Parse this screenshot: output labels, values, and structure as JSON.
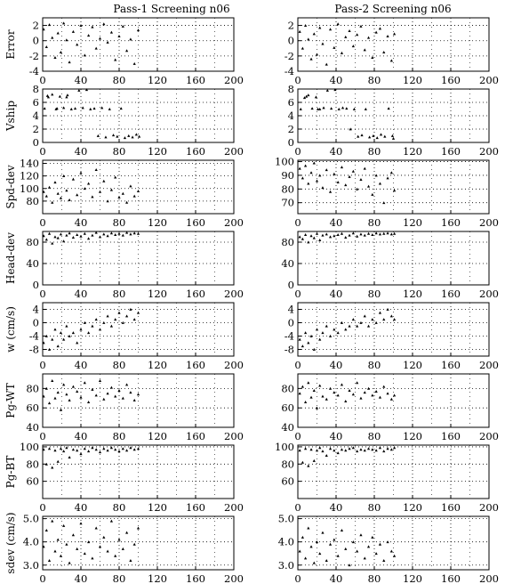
{
  "titles": [
    "Pass-1 Screening n06",
    "Pass-2 Screening n06"
  ],
  "chart_data": [
    {
      "type": "scatter",
      "id": "p1-error",
      "ylabel": "Error",
      "xlim": [
        0,
        200
      ],
      "ylim": [
        -4,
        3
      ],
      "xticks": [
        0,
        40,
        80,
        120,
        160,
        200
      ],
      "yticks": [
        -4,
        -2,
        0,
        2
      ],
      "ytick_labels": [
        "-4",
        "-2",
        "0",
        "2"
      ],
      "grid": true,
      "x": [
        1,
        4,
        7,
        10,
        13,
        16,
        19,
        22,
        25,
        28,
        32,
        36,
        40,
        44,
        48,
        52,
        56,
        60,
        64,
        68,
        72,
        76,
        80,
        84,
        88,
        92,
        96,
        100
      ],
      "y": [
        1.5,
        -0.8,
        2.1,
        0.4,
        -2.2,
        1.0,
        -1.5,
        2.3,
        0.1,
        -2.8,
        1.2,
        -0.5,
        2.0,
        -1.9,
        0.7,
        1.8,
        -1.0,
        0.3,
        2.2,
        -0.2,
        1.1,
        -2.5,
        0.6,
        1.9,
        -1.3,
        0.2,
        -3.0,
        1.4
      ]
    },
    {
      "type": "scatter",
      "id": "p2-error",
      "ylabel": "",
      "xlim": [
        0,
        200
      ],
      "ylim": [
        -4,
        3
      ],
      "xticks": [
        0,
        40,
        80,
        120,
        160,
        200
      ],
      "yticks": [
        -4,
        -2,
        0,
        2
      ],
      "ytick_labels": [
        "-4",
        "-2",
        "0",
        "2"
      ],
      "grid": true,
      "x": [
        2,
        5,
        8,
        11,
        14,
        17,
        20,
        23,
        26,
        30,
        34,
        38,
        42,
        46,
        50,
        54,
        58,
        62,
        66,
        70,
        74,
        78,
        82,
        86,
        90,
        94,
        98,
        101
      ],
      "y": [
        1.2,
        -1.0,
        2.0,
        0.2,
        -2.4,
        0.9,
        -1.8,
        1.7,
        -0.4,
        -3.1,
        1.5,
        -0.9,
        2.2,
        -1.6,
        0.5,
        1.3,
        -0.7,
        0.8,
        1.9,
        -1.2,
        0.4,
        -2.2,
        1.1,
        1.6,
        -1.5,
        0.6,
        -2.6,
        0.9
      ]
    },
    {
      "type": "scatter",
      "id": "p1-vship",
      "ylabel": "Vship",
      "xlim": [
        0,
        200
      ],
      "ylim": [
        0,
        8
      ],
      "xticks": [
        0,
        40,
        80,
        120,
        160,
        200
      ],
      "yticks": [
        0,
        2,
        4,
        6,
        8
      ],
      "ytick_labels": [
        "0",
        "2",
        "4",
        "6",
        "8"
      ],
      "grid": true,
      "x": [
        2,
        6,
        10,
        14,
        18,
        22,
        26,
        30,
        34,
        38,
        42,
        46,
        50,
        54,
        58,
        62,
        66,
        70,
        74,
        78,
        82,
        86,
        90,
        94,
        98,
        101,
        5,
        15,
        25
      ],
      "y": [
        5.1,
        6.8,
        7.2,
        5.0,
        6.9,
        5.2,
        7.1,
        5.0,
        5.1,
        7.8,
        5.2,
        7.9,
        5.0,
        5.1,
        1.0,
        5.2,
        0.8,
        5.0,
        1.1,
        0.9,
        5.1,
        0.7,
        1.0,
        0.8,
        1.2,
        0.9,
        7.0,
        5.1,
        6.8
      ]
    },
    {
      "type": "scatter",
      "id": "p2-vship",
      "ylabel": "",
      "xlim": [
        0,
        200
      ],
      "ylim": [
        0,
        8
      ],
      "xticks": [
        0,
        40,
        80,
        120,
        160,
        200
      ],
      "yticks": [
        0,
        2,
        4,
        6,
        8
      ],
      "ytick_labels": [
        "0",
        "2",
        "4",
        "6",
        "8"
      ],
      "grid": true,
      "x": [
        3,
        7,
        11,
        15,
        19,
        23,
        27,
        31,
        35,
        39,
        43,
        47,
        51,
        55,
        59,
        63,
        67,
        71,
        75,
        79,
        83,
        87,
        91,
        95,
        99,
        100,
        9,
        21
      ],
      "y": [
        5.0,
        6.7,
        7.1,
        5.1,
        6.8,
        5.0,
        5.2,
        7.8,
        5.1,
        7.9,
        5.0,
        5.2,
        5.1,
        2.0,
        5.0,
        0.9,
        1.1,
        5.0,
        0.8,
        1.0,
        0.7,
        1.2,
        0.9,
        5.1,
        1.0,
        0.6,
        6.9,
        5.0
      ]
    },
    {
      "type": "scatter",
      "id": "p1-spd",
      "ylabel": "Spd-dev",
      "xlim": [
        0,
        200
      ],
      "ylim": [
        60,
        145
      ],
      "xticks": [
        0,
        40,
        80,
        120,
        160,
        200
      ],
      "yticks": [
        80,
        100,
        120,
        140
      ],
      "ytick_labels": [
        "80",
        "100",
        "120",
        "140"
      ],
      "grid": true,
      "x": [
        1,
        4,
        7,
        10,
        13,
        16,
        19,
        22,
        25,
        28,
        32,
        36,
        40,
        44,
        48,
        52,
        56,
        60,
        64,
        68,
        72,
        76,
        80,
        84,
        88,
        92,
        96,
        100
      ],
      "y": [
        95,
        88,
        102,
        78,
        110,
        92,
        85,
        120,
        97,
        82,
        115,
        90,
        125,
        100,
        108,
        87,
        130,
        95,
        112,
        80,
        98,
        118,
        86,
        92,
        78,
        104,
        88,
        96
      ]
    },
    {
      "type": "scatter",
      "id": "p2-spd",
      "ylabel": "",
      "xlim": [
        0,
        200
      ],
      "ylim": [
        62,
        101
      ],
      "xticks": [
        0,
        40,
        80,
        120,
        160,
        200
      ],
      "yticks": [
        70,
        80,
        90,
        100
      ],
      "ytick_labels": [
        "70",
        "80",
        "90",
        "100"
      ],
      "grid": true,
      "x": [
        2,
        5,
        8,
        11,
        14,
        17,
        20,
        23,
        26,
        30,
        34,
        38,
        42,
        46,
        50,
        54,
        58,
        62,
        66,
        70,
        74,
        78,
        82,
        86,
        90,
        94,
        98,
        101
      ],
      "y": [
        95,
        88,
        97,
        84,
        92,
        99,
        86,
        90,
        81,
        94,
        78,
        91,
        85,
        96,
        83,
        89,
        93,
        80,
        87,
        95,
        82,
        76,
        90,
        84,
        70,
        88,
        92,
        79
      ]
    },
    {
      "type": "scatter",
      "id": "p1-head",
      "ylabel": "Head-dev",
      "xlim": [
        0,
        200
      ],
      "ylim": [
        0,
        100
      ],
      "xticks": [
        0,
        40,
        80,
        120,
        160,
        200
      ],
      "yticks": [
        0,
        40,
        80
      ],
      "ytick_labels": [
        "0",
        "40",
        "80"
      ],
      "grid": true,
      "x": [
        1,
        4,
        7,
        10,
        13,
        16,
        19,
        22,
        25,
        28,
        32,
        36,
        40,
        44,
        48,
        52,
        56,
        60,
        64,
        68,
        72,
        76,
        80,
        84,
        88,
        92,
        96,
        100
      ],
      "y": [
        92,
        85,
        96,
        78,
        90,
        88,
        95,
        82,
        93,
        97,
        89,
        94,
        91,
        96,
        87,
        93,
        98,
        90,
        95,
        92,
        97,
        94,
        96,
        93,
        98,
        95,
        97,
        96
      ]
    },
    {
      "type": "scatter",
      "id": "p2-head",
      "ylabel": "",
      "xlim": [
        0,
        200
      ],
      "ylim": [
        0,
        100
      ],
      "xticks": [
        0,
        40,
        80,
        120,
        160,
        200
      ],
      "yticks": [
        0,
        40,
        80
      ],
      "ytick_labels": [
        "0",
        "40",
        "80"
      ],
      "grid": true,
      "x": [
        2,
        5,
        8,
        11,
        14,
        17,
        20,
        23,
        26,
        30,
        34,
        38,
        42,
        46,
        50,
        54,
        58,
        62,
        66,
        70,
        74,
        78,
        82,
        86,
        90,
        94,
        98,
        101
      ],
      "y": [
        90,
        86,
        94,
        80,
        92,
        88,
        96,
        84,
        93,
        95,
        90,
        92,
        94,
        96,
        89,
        93,
        97,
        91,
        95,
        93,
        96,
        94,
        97,
        95,
        96,
        97,
        95,
        96
      ]
    },
    {
      "type": "scatter",
      "id": "p1-w",
      "ylabel": "w (cm/s)",
      "xlim": [
        0,
        200
      ],
      "ylim": [
        -10,
        6
      ],
      "xticks": [
        0,
        40,
        80,
        120,
        160,
        200
      ],
      "yticks": [
        -8,
        -4,
        0,
        4
      ],
      "ytick_labels": [
        "-8",
        "-4",
        "0",
        "4"
      ],
      "grid": true,
      "x": [
        1,
        4,
        7,
        10,
        13,
        16,
        19,
        22,
        25,
        28,
        32,
        36,
        40,
        44,
        48,
        52,
        56,
        60,
        64,
        68,
        72,
        76,
        80,
        84,
        88,
        92,
        96,
        100
      ],
      "y": [
        -6,
        -4,
        -8,
        -5,
        -2,
        -7,
        -3,
        -5,
        -1,
        -4,
        -3,
        -6,
        -2,
        0,
        -3,
        -1,
        1,
        -2,
        0,
        2,
        -1,
        1,
        3,
        0,
        2,
        4,
        1,
        3
      ]
    },
    {
      "type": "scatter",
      "id": "p2-w",
      "ylabel": "",
      "xlim": [
        0,
        200
      ],
      "ylim": [
        -10,
        6
      ],
      "xticks": [
        0,
        40,
        80,
        120,
        160,
        200
      ],
      "yticks": [
        -8,
        -4,
        0,
        4
      ],
      "ytick_labels": [
        "-8",
        "-4",
        "0",
        "4"
      ],
      "grid": true,
      "x": [
        2,
        5,
        8,
        11,
        14,
        17,
        20,
        23,
        26,
        30,
        34,
        38,
        42,
        46,
        50,
        54,
        58,
        62,
        66,
        70,
        74,
        78,
        82,
        86,
        90,
        94,
        98,
        101
      ],
      "y": [
        -5,
        -7,
        -3,
        -6,
        -4,
        -8,
        -2,
        -5,
        -3,
        -1,
        -4,
        -2,
        -3,
        0,
        -2,
        -1,
        1,
        -1,
        0,
        2,
        -1,
        1,
        0,
        3,
        1,
        4,
        2,
        1
      ]
    },
    {
      "type": "scatter",
      "id": "p1-pgwt",
      "ylabel": "Pg-WT",
      "xlim": [
        0,
        200
      ],
      "ylim": [
        40,
        95
      ],
      "xticks": [
        0,
        40,
        80,
        120,
        160,
        200
      ],
      "yticks": [
        40,
        60,
        80
      ],
      "ytick_labels": [
        "40",
        "60",
        "80"
      ],
      "grid": true,
      "x": [
        1,
        4,
        7,
        10,
        13,
        16,
        19,
        22,
        25,
        28,
        32,
        36,
        40,
        44,
        48,
        52,
        56,
        60,
        64,
        68,
        72,
        76,
        80,
        84,
        88,
        92,
        96,
        100
      ],
      "y": [
        72,
        80,
        65,
        88,
        70,
        76,
        58,
        84,
        74,
        68,
        82,
        77,
        71,
        86,
        66,
        79,
        73,
        88,
        69,
        75,
        81,
        72,
        78,
        70,
        84,
        76,
        68,
        74
      ]
    },
    {
      "type": "scatter",
      "id": "p2-pgwt",
      "ylabel": "",
      "xlim": [
        0,
        200
      ],
      "ylim": [
        40,
        95
      ],
      "xticks": [
        0,
        40,
        80,
        120,
        160,
        200
      ],
      "yticks": [
        40,
        60,
        80
      ],
      "ytick_labels": [
        "40",
        "60",
        "80"
      ],
      "grid": true,
      "x": [
        2,
        5,
        8,
        11,
        14,
        17,
        20,
        23,
        26,
        30,
        34,
        38,
        42,
        46,
        50,
        54,
        58,
        62,
        66,
        70,
        74,
        78,
        82,
        86,
        90,
        94,
        98,
        101
      ],
      "y": [
        75,
        82,
        66,
        86,
        71,
        78,
        60,
        83,
        72,
        69,
        80,
        76,
        73,
        84,
        67,
        78,
        74,
        86,
        70,
        76,
        80,
        73,
        77,
        71,
        82,
        75,
        69,
        73
      ]
    },
    {
      "type": "scatter",
      "id": "p1-pgbt",
      "ylabel": "Pg-BT",
      "xlim": [
        0,
        200
      ],
      "ylim": [
        40,
        102
      ],
      "xticks": [
        0,
        40,
        80,
        120,
        160,
        200
      ],
      "yticks": [
        60,
        80,
        100
      ],
      "ytick_labels": [
        "60",
        "80",
        "100"
      ],
      "grid": true,
      "x": [
        1,
        4,
        7,
        10,
        13,
        16,
        19,
        22,
        25,
        28,
        32,
        36,
        40,
        44,
        48,
        52,
        56,
        60,
        64,
        68,
        72,
        76,
        80,
        84,
        88,
        92,
        96,
        100
      ],
      "y": [
        97,
        80,
        98,
        76,
        96,
        83,
        98,
        95,
        99,
        88,
        97,
        96,
        92,
        98,
        95,
        99,
        97,
        94,
        98,
        96,
        99,
        97,
        95,
        98,
        96,
        99,
        97,
        98
      ]
    },
    {
      "type": "scatter",
      "id": "p2-pgbt",
      "ylabel": "",
      "xlim": [
        0,
        200
      ],
      "ylim": [
        40,
        102
      ],
      "xticks": [
        0,
        40,
        80,
        120,
        160,
        200
      ],
      "yticks": [
        60,
        80,
        100
      ],
      "ytick_labels": [
        "60",
        "80",
        "100"
      ],
      "grid": true,
      "x": [
        2,
        5,
        8,
        11,
        14,
        17,
        20,
        23,
        26,
        30,
        34,
        38,
        42,
        46,
        50,
        54,
        58,
        62,
        66,
        70,
        74,
        78,
        82,
        86,
        90,
        94,
        98,
        101
      ],
      "y": [
        96,
        82,
        98,
        78,
        97,
        84,
        96,
        99,
        95,
        90,
        98,
        96,
        93,
        97,
        96,
        98,
        99,
        95,
        97,
        96,
        98,
        97,
        96,
        99,
        95,
        98,
        97,
        99
      ]
    },
    {
      "type": "scatter",
      "id": "p1-sdev",
      "ylabel": "sdev (cm/s)",
      "xlim": [
        0,
        200
      ],
      "ylim": [
        2.8,
        5.1
      ],
      "xticks": [
        0,
        40,
        80,
        120,
        160,
        200
      ],
      "yticks": [
        3.0,
        4.0,
        5.0
      ],
      "ytick_labels": [
        "3.0",
        "4.0",
        "5.0"
      ],
      "grid": true,
      "x": [
        1,
        4,
        7,
        10,
        13,
        16,
        19,
        22,
        25,
        28,
        32,
        36,
        40,
        44,
        48,
        52,
        56,
        60,
        64,
        68,
        72,
        76,
        80,
        84,
        88,
        92,
        96,
        100
      ],
      "y": [
        3.8,
        4.5,
        3.2,
        4.9,
        3.6,
        4.1,
        3.4,
        4.7,
        3.9,
        3.1,
        4.3,
        3.7,
        4.8,
        3.5,
        4.0,
        3.3,
        4.6,
        3.8,
        4.2,
        3.6,
        4.9,
        3.4,
        4.1,
        3.7,
        4.4,
        3.2,
        3.9,
        4.6
      ]
    },
    {
      "type": "scatter",
      "id": "p2-sdev",
      "ylabel": "",
      "xlim": [
        0,
        200
      ],
      "ylim": [
        2.8,
        5.1
      ],
      "xticks": [
        0,
        40,
        80,
        120,
        160,
        200
      ],
      "yticks": [
        3.0,
        4.0,
        5.0
      ],
      "ytick_labels": [
        "3.0",
        "4.0",
        "5.0"
      ],
      "grid": true,
      "x": [
        2,
        5,
        8,
        11,
        14,
        17,
        20,
        23,
        26,
        30,
        34,
        38,
        42,
        46,
        50,
        54,
        58,
        62,
        66,
        70,
        74,
        78,
        82,
        86,
        90,
        94,
        98,
        101
      ],
      "y": [
        3.6,
        4.2,
        3.3,
        4.6,
        3.8,
        3.1,
        4.0,
        3.5,
        4.4,
        3.2,
        3.9,
        4.1,
        3.4,
        4.5,
        3.7,
        3.0,
        4.0,
        3.6,
        4.3,
        3.3,
        3.8,
        4.2,
        3.5,
        3.9,
        3.2,
        4.0,
        3.6,
        3.4
      ]
    }
  ]
}
